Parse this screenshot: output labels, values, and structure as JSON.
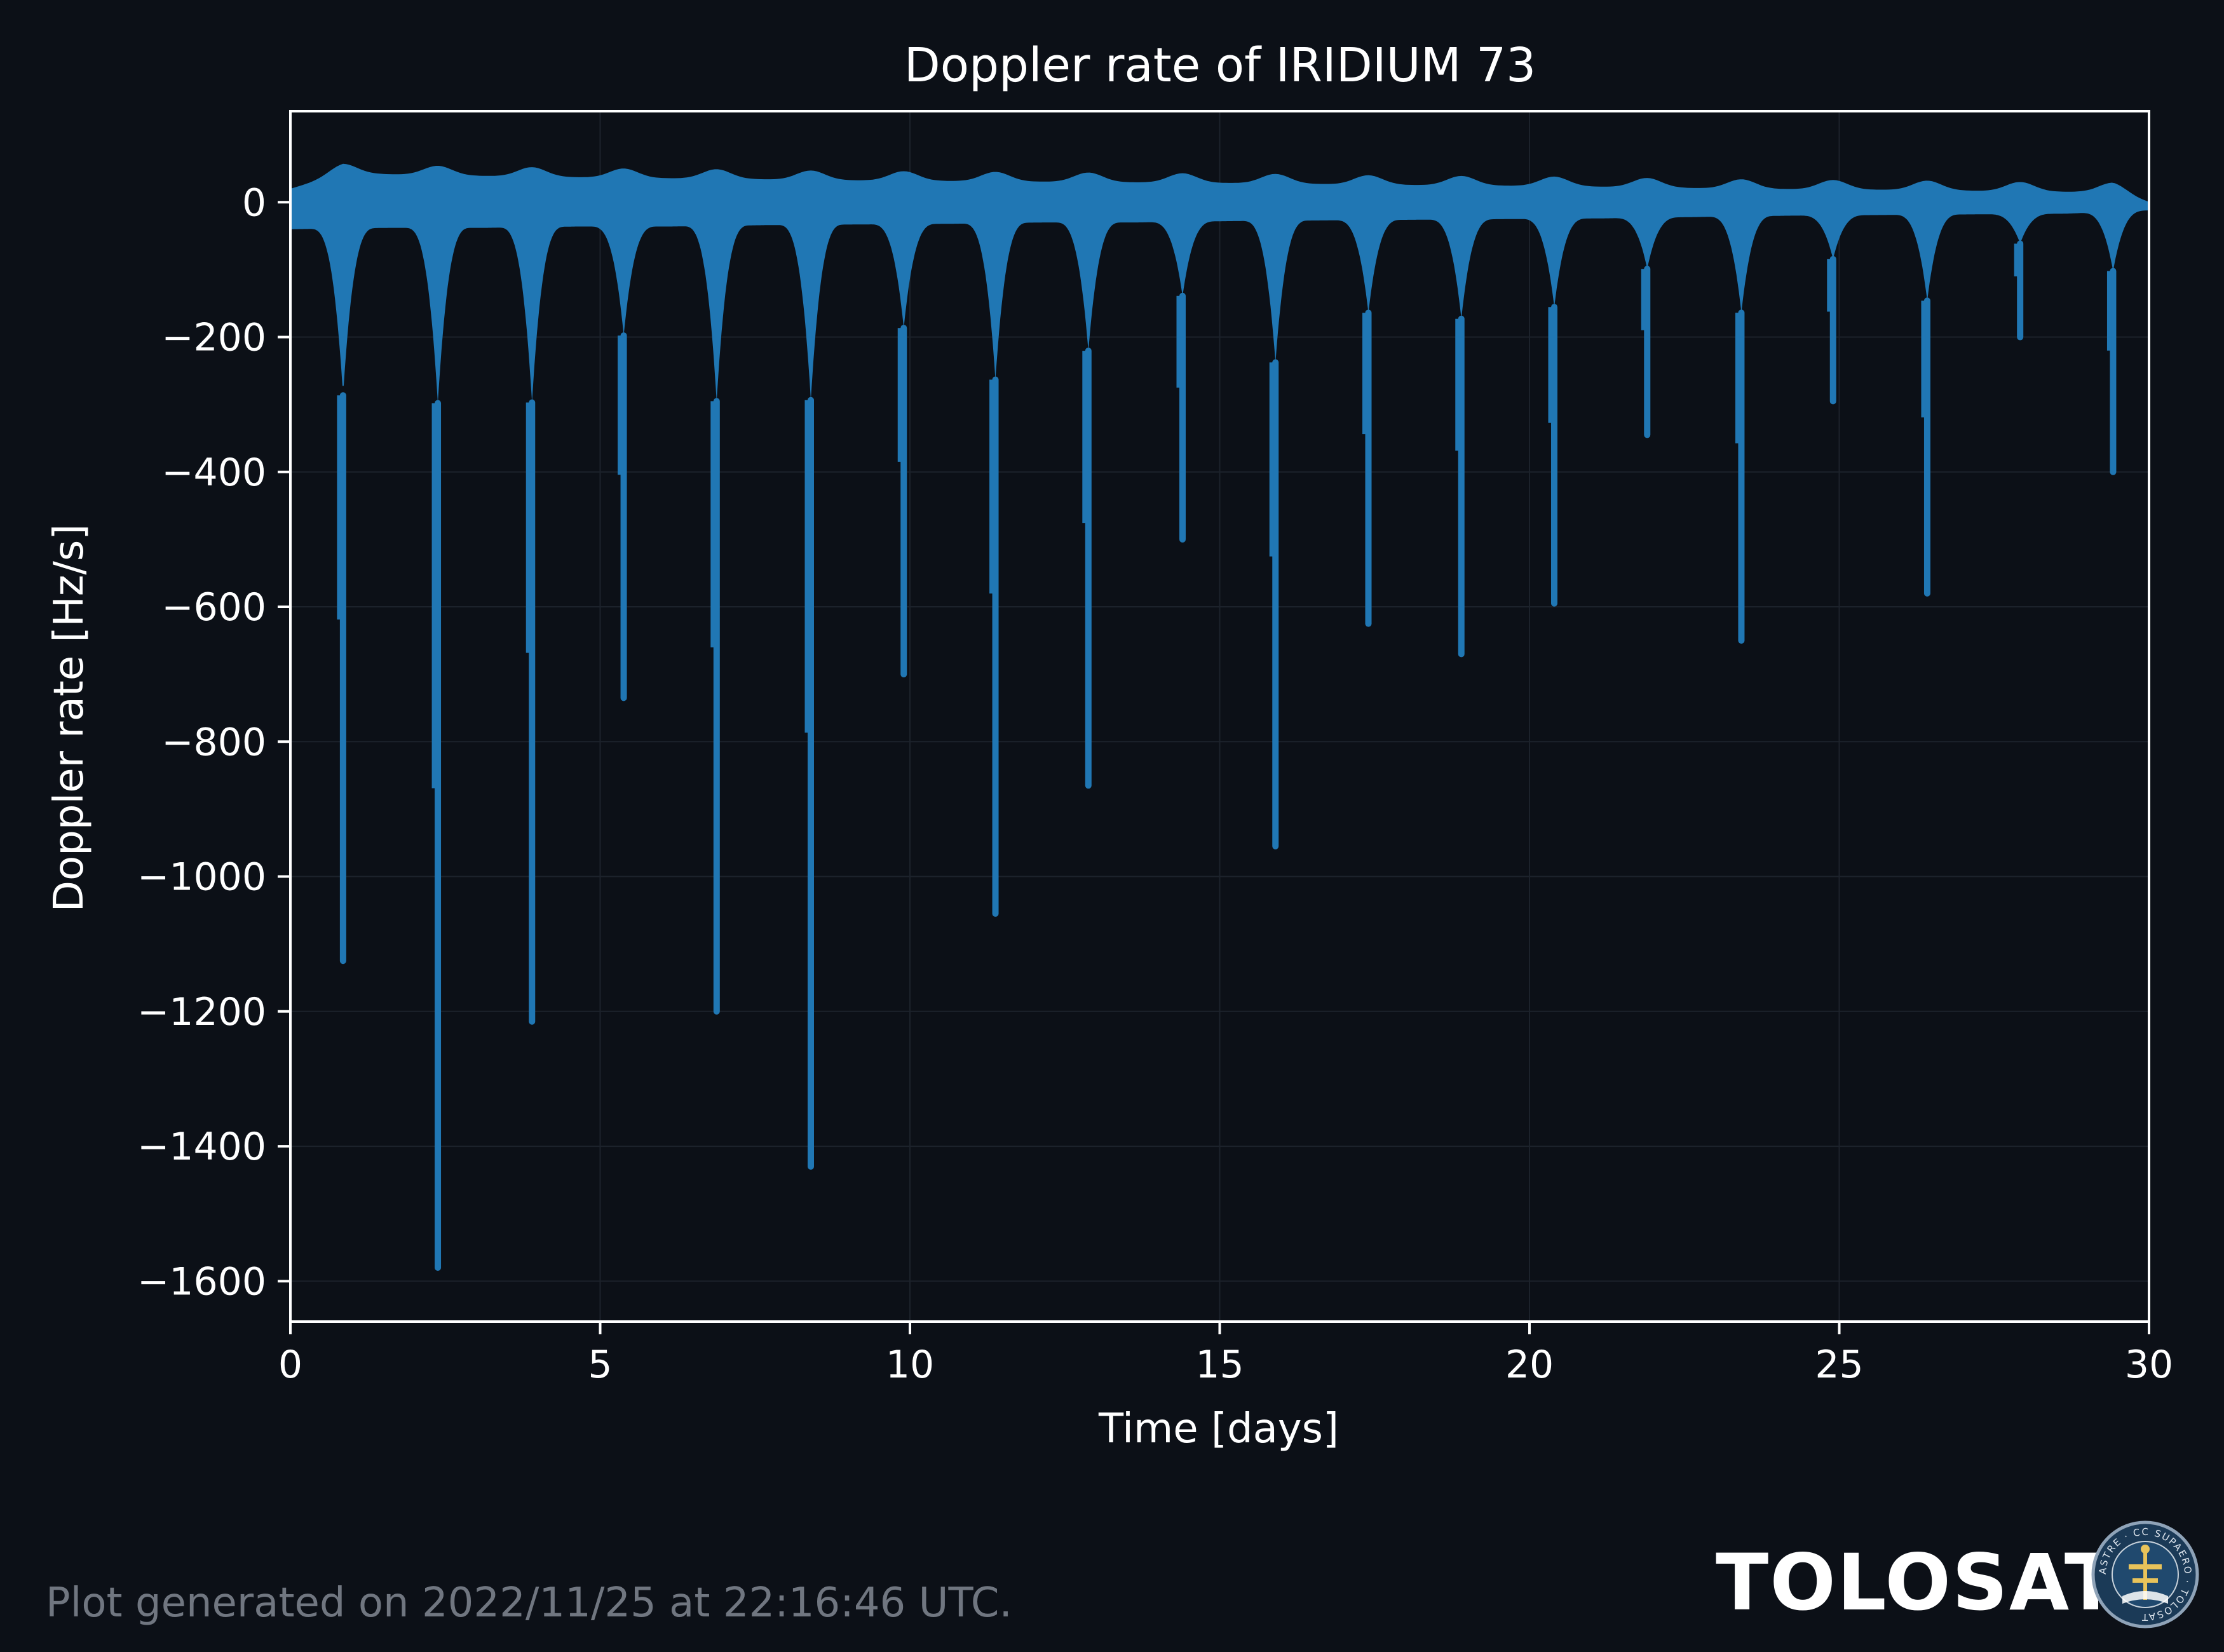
{
  "footer": {
    "generated_text": "Plot generated on 2022/11/25 at 22:16:46 UTC.",
    "brand": "TOLOSAT",
    "seal_text": "ASTRE · CC SUPAERO · TOLOSAT"
  },
  "colors": {
    "background": "#0c1017",
    "series": "#2077b4",
    "axes": "#ffffff",
    "grid": "#1c222b",
    "muted": "#707680"
  },
  "chart_data": {
    "type": "line",
    "title": "Doppler rate of IRIDIUM 73",
    "xlabel": "Time [days]",
    "ylabel": "Doppler rate [Hz/s]",
    "xlim": [
      0,
      30
    ],
    "ylim": [
      -1660,
      135
    ],
    "xticks": [
      0,
      5,
      10,
      15,
      20,
      25,
      30
    ],
    "xtick_labels": [
      "0",
      "5",
      "10",
      "15",
      "20",
      "25",
      "30"
    ],
    "yticks": [
      0,
      -200,
      -400,
      -600,
      -800,
      -1000,
      -1200,
      -1400,
      -1600
    ],
    "ytick_labels": [
      "0",
      "−200",
      "−400",
      "−600",
      "−800",
      "−1000",
      "−1200",
      "−1400",
      "−1600"
    ],
    "grid": true,
    "series": [
      {
        "peaks": {
          "x": [
            0.85,
            2.38,
            3.9,
            5.38,
            6.88,
            8.4,
            9.9,
            11.38,
            12.88,
            14.4,
            15.9,
            17.4,
            18.9,
            20.4,
            21.9,
            23.42,
            24.9,
            26.42,
            27.92,
            29.42
          ],
          "y": [
            -1125,
            -1580,
            -1215,
            -735,
            -1200,
            -1430,
            -700,
            -1055,
            -865,
            -500,
            -955,
            -625,
            -670,
            -595,
            -345,
            -650,
            -295,
            -580,
            -200,
            -400
          ]
        },
        "upper_envelope": {
          "x": [
            0,
            0.85,
            2.38,
            3.9,
            5.38,
            6.88,
            8.4,
            9.9,
            11.38,
            12.88,
            14.4,
            15.9,
            17.4,
            18.9,
            20.4,
            21.9,
            23.42,
            24.9,
            26.42,
            27.92,
            29.42,
            30
          ],
          "y": [
            32,
            55,
            52,
            50,
            48,
            47,
            45,
            44,
            43,
            42,
            41,
            40,
            38,
            37,
            36,
            34,
            32,
            31,
            30,
            28,
            27,
            12
          ]
        },
        "lower_envelope": {
          "x": [
            0,
            1.6,
            3.15,
            4.65,
            6.15,
            7.65,
            9.15,
            10.65,
            12.15,
            13.65,
            15.15,
            16.65,
            18.15,
            19.65,
            21.15,
            22.65,
            24.15,
            25.65,
            27.15,
            28.65,
            30
          ],
          "y": [
            -40,
            -38,
            -38,
            -36,
            -36,
            -34,
            -33,
            -32,
            -30,
            -30,
            -28,
            -27,
            -26,
            -25,
            -24,
            -22,
            -20,
            -19,
            -18,
            -17,
            -12
          ]
        }
      }
    ]
  }
}
